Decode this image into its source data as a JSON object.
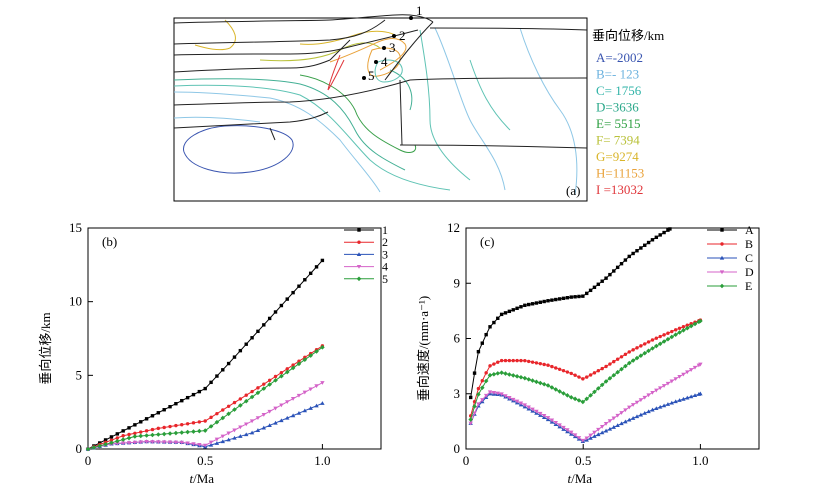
{
  "chart_data": [
    {
      "type": "contour",
      "panel_label": "(a)",
      "legend_title": "垂向位移/km",
      "levels": [
        {
          "label": "A=-2002",
          "value": -2002,
          "color": "#3a55b0"
        },
        {
          "label": "B=- 123",
          "value": -123,
          "color": "#6cb2de"
        },
        {
          "label": "C= 1756",
          "value": 1756,
          "color": "#2fb3a7"
        },
        {
          "label": "D=3636",
          "value": 3636,
          "color": "#2aa88a"
        },
        {
          "label": "E= 5515",
          "value": 5515,
          "color": "#2b9e3f"
        },
        {
          "label": "F= 7394",
          "value": 7394,
          "color": "#b9c13a"
        },
        {
          "label": "G=9274",
          "value": 9274,
          "color": "#d9b52a"
        },
        {
          "label": "H=11153",
          "value": 11153,
          "color": "#e9a23a"
        },
        {
          "label": "I =13032",
          "value": 13032,
          "color": "#e0353a"
        }
      ],
      "points": [
        "1",
        "2",
        "3",
        "4",
        "5"
      ]
    },
    {
      "type": "line",
      "panel_label": "(b)",
      "xlabel_italic": "t",
      "xlabel_rest": "/Ma",
      "ylabel": "垂向位移/km",
      "xlim": [
        0,
        1.25
      ],
      "ylim": [
        0,
        15
      ],
      "xticks": [
        0,
        0.5,
        1.0
      ],
      "xtick_labels": [
        "0",
        "0.5",
        "1.0"
      ],
      "yticks": [
        0,
        5,
        10,
        15
      ],
      "ytick_labels": [
        "0",
        "5",
        "10",
        "15"
      ],
      "series": [
        {
          "name": "1",
          "color": "#000000",
          "marker": "square",
          "knots": [
            [
              0,
              0
            ],
            [
              0.5,
              4.1
            ],
            [
              0.6,
              5.8
            ],
            [
              0.8,
              9.3
            ],
            [
              1.0,
              12.8
            ]
          ]
        },
        {
          "name": "2",
          "color": "#e8262b",
          "marker": "circle",
          "knots": [
            [
              0,
              0
            ],
            [
              0.15,
              0.9
            ],
            [
              0.3,
              1.4
            ],
            [
              0.5,
              1.9
            ],
            [
              0.75,
              4.4
            ],
            [
              1.0,
              7.0
            ]
          ]
        },
        {
          "name": "3",
          "color": "#2a52b8",
          "marker": "triangle",
          "knots": [
            [
              0,
              0
            ],
            [
              0.1,
              0.35
            ],
            [
              0.25,
              0.5
            ],
            [
              0.4,
              0.45
            ],
            [
              0.5,
              0.15
            ],
            [
              0.7,
              1.1
            ],
            [
              1.0,
              3.1
            ]
          ]
        },
        {
          "name": "4",
          "color": "#d463c8",
          "marker": "triangle-down",
          "knots": [
            [
              0,
              0
            ],
            [
              0.1,
              0.35
            ],
            [
              0.25,
              0.5
            ],
            [
              0.4,
              0.45
            ],
            [
              0.5,
              0.25
            ],
            [
              0.7,
              1.9
            ],
            [
              1.0,
              4.5
            ]
          ]
        },
        {
          "name": "5",
          "color": "#2a9e3a",
          "marker": "diamond",
          "knots": [
            [
              0,
              0
            ],
            [
              0.2,
              0.85
            ],
            [
              0.5,
              1.25
            ],
            [
              0.75,
              4.1
            ],
            [
              1.0,
              6.9
            ]
          ]
        }
      ]
    },
    {
      "type": "line",
      "panel_label": "(c)",
      "xlabel_italic": "t",
      "xlabel_rest": "/Ma",
      "ylabel": "垂向速度/(mm·a⁻¹)",
      "xlim": [
        0,
        1.25
      ],
      "ylim": [
        0,
        12
      ],
      "xticks": [
        0,
        0.5,
        1.0
      ],
      "xtick_labels": [
        "0",
        "0.5",
        "1.0"
      ],
      "yticks": [
        0,
        3,
        6,
        9,
        12
      ],
      "ytick_labels": [
        "0",
        "3",
        "6",
        "9",
        "12"
      ],
      "series": [
        {
          "name": "A",
          "color": "#000000",
          "marker": "square",
          "knots": [
            [
              0.02,
              2.8
            ],
            [
              0.05,
              5.2
            ],
            [
              0.1,
              6.6
            ],
            [
              0.15,
              7.3
            ],
            [
              0.25,
              7.8
            ],
            [
              0.35,
              8.05
            ],
            [
              0.45,
              8.25
            ],
            [
              0.5,
              8.3
            ],
            [
              0.6,
              9.3
            ],
            [
              0.7,
              10.5
            ],
            [
              0.8,
              11.4
            ],
            [
              0.87,
              11.95
            ]
          ]
        },
        {
          "name": "B",
          "color": "#e8262b",
          "marker": "circle",
          "knots": [
            [
              0.02,
              1.8
            ],
            [
              0.05,
              3.2
            ],
            [
              0.1,
              4.5
            ],
            [
              0.15,
              4.8
            ],
            [
              0.25,
              4.8
            ],
            [
              0.35,
              4.55
            ],
            [
              0.45,
              4.1
            ],
            [
              0.5,
              3.8
            ],
            [
              0.6,
              4.5
            ],
            [
              0.7,
              5.3
            ],
            [
              0.8,
              5.95
            ],
            [
              0.9,
              6.5
            ],
            [
              1.0,
              7.0
            ]
          ]
        },
        {
          "name": "C",
          "color": "#2a52b8",
          "marker": "triangle",
          "knots": [
            [
              0.02,
              1.4
            ],
            [
              0.05,
              2.3
            ],
            [
              0.1,
              3.0
            ],
            [
              0.15,
              2.95
            ],
            [
              0.25,
              2.3
            ],
            [
              0.35,
              1.6
            ],
            [
              0.45,
              0.8
            ],
            [
              0.5,
              0.4
            ],
            [
              0.6,
              1.0
            ],
            [
              0.7,
              1.6
            ],
            [
              0.8,
              2.15
            ],
            [
              0.9,
              2.6
            ],
            [
              1.0,
              3.0
            ]
          ]
        },
        {
          "name": "D",
          "color": "#d463c8",
          "marker": "triangle-down",
          "knots": [
            [
              0.02,
              1.4
            ],
            [
              0.05,
              2.4
            ],
            [
              0.1,
              3.1
            ],
            [
              0.15,
              3.0
            ],
            [
              0.25,
              2.4
            ],
            [
              0.35,
              1.7
            ],
            [
              0.45,
              0.9
            ],
            [
              0.5,
              0.45
            ],
            [
              0.6,
              1.4
            ],
            [
              0.7,
              2.3
            ],
            [
              0.8,
              3.1
            ],
            [
              0.9,
              3.85
            ],
            [
              1.0,
              4.6
            ]
          ]
        },
        {
          "name": "E",
          "color": "#2a9e3a",
          "marker": "diamond",
          "knots": [
            [
              0.02,
              1.6
            ],
            [
              0.05,
              2.9
            ],
            [
              0.1,
              4.0
            ],
            [
              0.15,
              4.15
            ],
            [
              0.25,
              3.85
            ],
            [
              0.35,
              3.45
            ],
            [
              0.45,
              2.8
            ],
            [
              0.5,
              2.55
            ],
            [
              0.6,
              3.7
            ],
            [
              0.7,
              4.7
            ],
            [
              0.8,
              5.5
            ],
            [
              0.9,
              6.25
            ],
            [
              1.0,
              6.95
            ]
          ]
        }
      ]
    }
  ]
}
